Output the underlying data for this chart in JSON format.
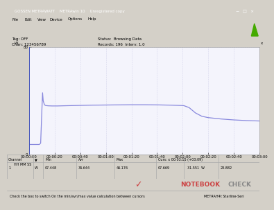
{
  "title_bar": "GOSSEN METRAWATT    METRAwin 10    Unregistered copy",
  "tag": "Tag: OFF",
  "chan": "Chan: 123456789",
  "status": "Status:  Browsing Data",
  "records": "Records: 196  Interv: 1.0",
  "y_max_label": "80",
  "y_min_label": "0",
  "y_unit": "W",
  "x_ticks": [
    "00:00:00",
    "00:00:20",
    "00:00:40",
    "00:01:00",
    "00:01:20",
    "00:01:40",
    "00:02:00",
    "00:02:20",
    "00:02:40",
    "00:03:00"
  ],
  "hh_mm_ss": "HH MM SS",
  "line_color": "#8888dd",
  "plot_bg": "#f4f4fc",
  "grid_color": "#bbbbdd",
  "min_val": "07.448",
  "avg_val": "36.644",
  "max_val": "46.176",
  "cursor_info": "Curs: x 00:03:15 (+03:09)",
  "cursor_val1": "07.669",
  "cursor_val2": "31.551",
  "cursor_unit": "W",
  "cursor_val3": "23.882",
  "channel": "1",
  "unit": "W",
  "notebookcheck_color": "#cc4444",
  "window_bg": "#d4d0c8",
  "titlebar_bg": "#0a246a",
  "titlebar_fg": "#ffffff",
  "status_text": "Check the box to switch On the min/avr/max value calculation between cursors",
  "status_right": "METRAH4t Starline-Seri",
  "green_tri": "#44aa00",
  "data_x": [
    0,
    8,
    9,
    10,
    10.5,
    11,
    12,
    13,
    15,
    18,
    22,
    30,
    40,
    50,
    60,
    70,
    80,
    90,
    100,
    110,
    120,
    121,
    125,
    130,
    135,
    140,
    150,
    160,
    170,
    180
  ],
  "data_y": [
    7.5,
    7.5,
    8.5,
    34,
    46,
    40,
    37.0,
    36.5,
    36.3,
    36.2,
    36.2,
    36.4,
    36.6,
    36.8,
    36.9,
    37.0,
    37.1,
    37.1,
    37.0,
    36.8,
    36.5,
    36.4,
    35.0,
    31.0,
    28.5,
    27.5,
    26.5,
    25.8,
    25.3,
    25.0
  ]
}
